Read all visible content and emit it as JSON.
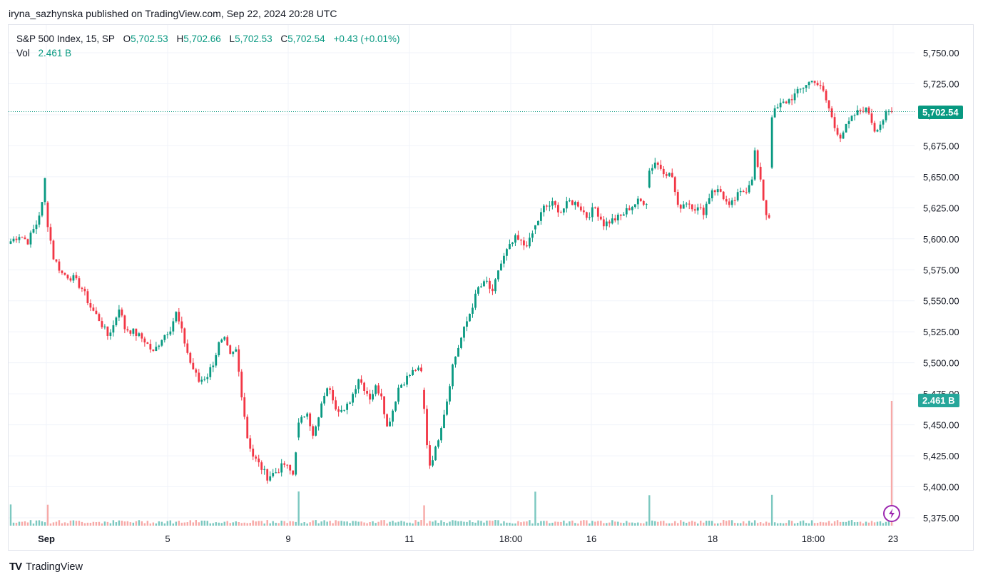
{
  "publisher": "iryna_sazhynska published on TradingView.com, Sep 22, 2024 20:28 UTC",
  "legend": {
    "symbol": "S&P 500 Index, 15, SP",
    "o_label": "O",
    "o_value": "5,702.53",
    "h_label": "H",
    "h_value": "5,702.66",
    "l_label": "L",
    "l_value": "5,702.53",
    "c_label": "C",
    "c_value": "5,702.54",
    "change": "+0.43 (+0.01%)",
    "vol_label": "Vol",
    "vol_value": "2.461 B"
  },
  "badges": {
    "price": "5,702.54",
    "volume": "2.461 B"
  },
  "footer": {
    "logo": "TV",
    "brand": "TradingView"
  },
  "colors": {
    "up": "#089981",
    "down": "#f23645",
    "grid": "#f0f3fa",
    "vol_up": "#7cc8c0",
    "vol_down": "#f7a9a7",
    "price_line": "#089981"
  },
  "chart_data": {
    "type": "candlestick",
    "title": "S&P 500 Index, 15, SP",
    "ylim": [
      5365,
      5765
    ],
    "y_ticks": [
      5375,
      5400,
      5425,
      5450,
      5475,
      5500,
      5525,
      5550,
      5575,
      5600,
      5625,
      5650,
      5675,
      5700,
      5725,
      5750
    ],
    "y_tick_labels": [
      "5,375.00",
      "5,400.00",
      "5,425.00",
      "5,450.00",
      "5,475.00",
      "5,500.00",
      "5,525.00",
      "5,550.00",
      "5,575.00",
      "5,600.00",
      "5,625.00",
      "5,650.00",
      "5,675.00",
      "5,700.00",
      "5,725.00",
      "5,750.00"
    ],
    "x_tick_labels": [
      "Sep",
      "5",
      "9",
      "11",
      "18:00",
      "16",
      "18",
      "18:00",
      "23"
    ],
    "last_price": 5702.54,
    "last_volume": "2.461 B",
    "close_path": [
      [
        0,
        5598
      ],
      [
        3,
        5603
      ],
      [
        6,
        5598
      ],
      [
        9,
        5612
      ],
      [
        11,
        5628
      ],
      [
        12,
        5648
      ],
      [
        13,
        5612
      ],
      [
        15,
        5585
      ],
      [
        18,
        5572
      ],
      [
        22,
        5568
      ],
      [
        25,
        5560
      ],
      [
        28,
        5545
      ],
      [
        31,
        5535
      ],
      [
        34,
        5522
      ],
      [
        36,
        5530
      ],
      [
        38,
        5545
      ],
      [
        40,
        5528
      ],
      [
        43,
        5525
      ],
      [
        47,
        5518
      ],
      [
        50,
        5508
      ],
      [
        53,
        5520
      ],
      [
        56,
        5528
      ],
      [
        58,
        5540
      ],
      [
        60,
        5525
      ],
      [
        63,
        5500
      ],
      [
        66,
        5485
      ],
      [
        69,
        5490
      ],
      [
        71,
        5500
      ],
      [
        73,
        5515
      ],
      [
        75,
        5518
      ],
      [
        77,
        5505
      ],
      [
        79,
        5510
      ],
      [
        81,
        5475
      ],
      [
        83,
        5440
      ],
      [
        85,
        5425
      ],
      [
        88,
        5415
      ],
      [
        90,
        5408
      ],
      [
        93,
        5412
      ],
      [
        96,
        5418
      ],
      [
        99,
        5410
      ],
      [
        101,
        5450
      ],
      [
        104,
        5462
      ],
      [
        106,
        5440
      ],
      [
        108,
        5455
      ],
      [
        110,
        5475
      ],
      [
        112,
        5480
      ],
      [
        114,
        5465
      ],
      [
        117,
        5460
      ],
      [
        120,
        5475
      ],
      [
        122,
        5488
      ],
      [
        124,
        5480
      ],
      [
        126,
        5472
      ],
      [
        128,
        5480
      ],
      [
        130,
        5475
      ],
      [
        132,
        5448
      ],
      [
        134,
        5462
      ],
      [
        136,
        5480
      ],
      [
        139,
        5488
      ],
      [
        142,
        5495
      ],
      [
        144,
        5492
      ],
      [
        145,
        5462
      ],
      [
        146,
        5435
      ],
      [
        147,
        5418
      ],
      [
        149,
        5430
      ],
      [
        151,
        5450
      ],
      [
        153,
        5470
      ],
      [
        155,
        5498
      ],
      [
        158,
        5520
      ],
      [
        161,
        5540
      ],
      [
        164,
        5560
      ],
      [
        167,
        5565
      ],
      [
        169,
        5555
      ],
      [
        171,
        5575
      ],
      [
        174,
        5590
      ],
      [
        177,
        5600
      ],
      [
        180,
        5595
      ],
      [
        182,
        5598
      ],
      [
        184,
        5610
      ],
      [
        187,
        5625
      ],
      [
        190,
        5628
      ],
      [
        193,
        5622
      ],
      [
        196,
        5630
      ],
      [
        199,
        5628
      ],
      [
        202,
        5618
      ],
      [
        205,
        5625
      ],
      [
        208,
        5612
      ],
      [
        211,
        5615
      ],
      [
        214,
        5618
      ],
      [
        217,
        5625
      ],
      [
        220,
        5630
      ],
      [
        223,
        5630
      ],
      [
        224,
        5655
      ],
      [
        226,
        5662
      ],
      [
        229,
        5655
      ],
      [
        232,
        5650
      ],
      [
        234,
        5625
      ],
      [
        237,
        5630
      ],
      [
        240,
        5625
      ],
      [
        243,
        5622
      ],
      [
        246,
        5640
      ],
      [
        249,
        5638
      ],
      [
        252,
        5625
      ],
      [
        255,
        5635
      ],
      [
        258,
        5640
      ],
      [
        260,
        5650
      ],
      [
        261,
        5670
      ],
      [
        263,
        5645
      ],
      [
        265,
        5620
      ],
      [
        266,
        5618
      ],
      [
        267,
        5700
      ],
      [
        270,
        5708
      ],
      [
        273,
        5712
      ],
      [
        276,
        5718
      ],
      [
        279,
        5725
      ],
      [
        282,
        5728
      ],
      [
        285,
        5718
      ],
      [
        287,
        5705
      ],
      [
        289,
        5690
      ],
      [
        291,
        5683
      ],
      [
        293,
        5690
      ],
      [
        296,
        5700
      ],
      [
        299,
        5705
      ],
      [
        301,
        5702
      ],
      [
        303,
        5688
      ],
      [
        305,
        5693
      ],
      [
        307,
        5700
      ],
      [
        309,
        5702
      ]
    ],
    "volume_profile": "session spikes at each day open, final bar 2.461 B"
  }
}
